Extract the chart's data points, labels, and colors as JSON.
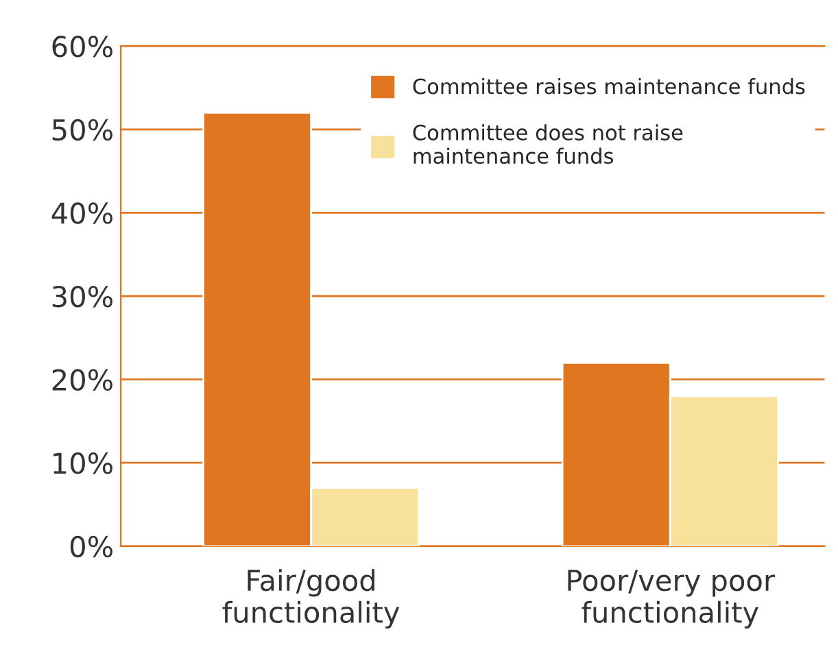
{
  "chart_data": {
    "type": "bar",
    "categories": [
      "Fair/good\nfunctionality",
      "Poor/very poor\nfunctionality"
    ],
    "series": [
      {
        "name": "Committee raises maintenance funds",
        "color": "#e2751f",
        "values": [
          52,
          22
        ]
      },
      {
        "name": "Committee does not raise\nmaintenance funds",
        "color": "#f8e19b",
        "values": [
          7,
          18
        ]
      }
    ],
    "ylim": [
      0,
      60
    ],
    "yticks": [
      {
        "value": 0,
        "label": "0%"
      },
      {
        "value": 10,
        "label": "10%"
      },
      {
        "value": 20,
        "label": "20%"
      },
      {
        "value": 30,
        "label": "30%"
      },
      {
        "value": 40,
        "label": "40%"
      },
      {
        "value": 50,
        "label": "50%"
      },
      {
        "value": 60,
        "label": "60%"
      }
    ],
    "grid": "y",
    "legend": "top right"
  }
}
